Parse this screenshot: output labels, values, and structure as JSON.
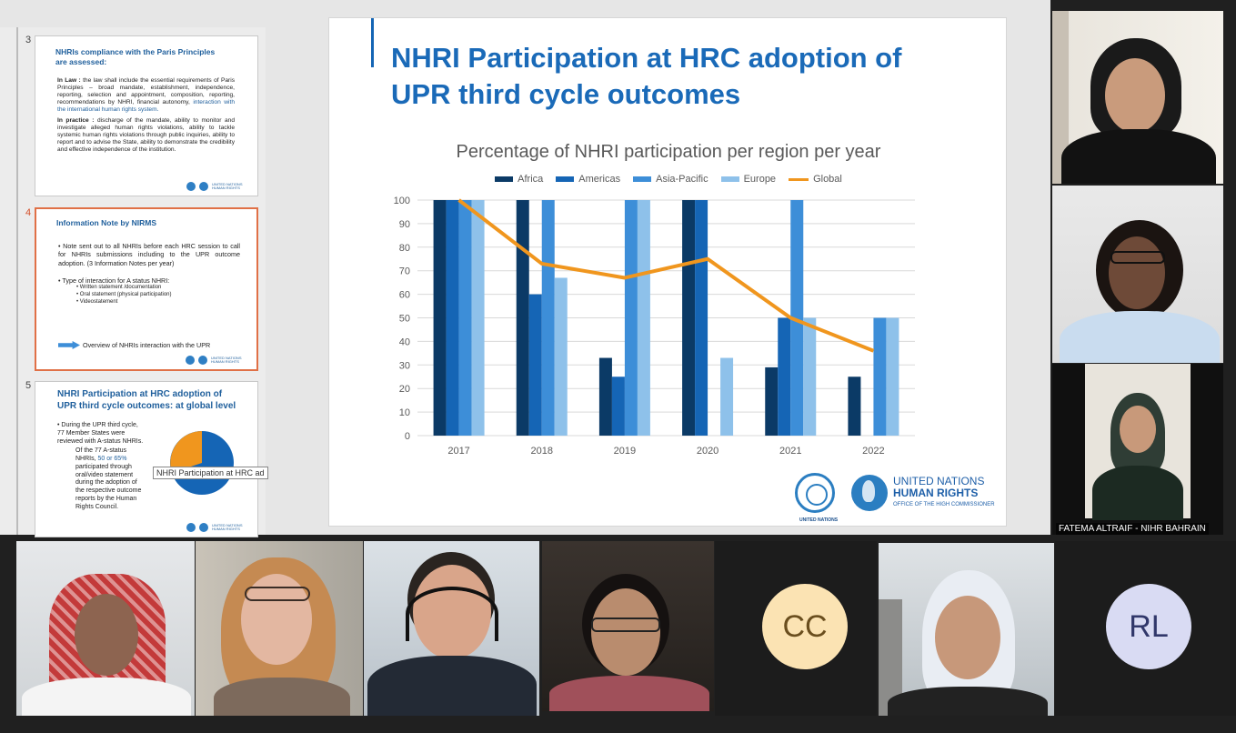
{
  "thumbnails": [
    {
      "number": "3",
      "title": "NHRIs compliance with the Paris Principles are assessed:",
      "law_label": "In Law :",
      "law_text": "the law shall include the essential requirements of Paris Principles – broad mandate, establishment, independence, reporting, selection and appointment, composition, reporting, recommendations by NHRI, financial autonomy,",
      "law_blue": "interaction with the international human rights system.",
      "practice_label": "In practice :",
      "practice_text": "discharge of the mandate, ability to monitor and investigate alleged human rights violations, ability to tackle systemic human rights violations through public inquiries, ability to report and to advise the State, ability to demonstrate the credibility and effective independence of the institution."
    },
    {
      "number": "4",
      "title": "Information Note by NIRMS",
      "bullet1": "Note sent out to all NHRIs before each HRC session to call for NHRIs submissions including to the UPR outcome adoption. (3 Information Notes per year)",
      "bullet2": "Type of interaction for A status NHRI:",
      "sub": [
        "Written statement /documentation",
        "Oral statement (physical participation)",
        "Videostatement"
      ],
      "arrow_text": "Overview of NHRIs interaction with the UPR"
    },
    {
      "number": "5",
      "title": "NHRI Participation at HRC adoption of UPR third cycle outcomes: at global level",
      "bullet": "During the UPR third cycle, 77 Member States were reviewed with A-status NHRIs.",
      "para_pre": "Of the 77 A-status NHRIs,",
      "para_blue": "50 or 65%",
      "para_post": "participated through oral/video statement during the adoption of the respective outcome reports by the Human Rights Council."
    }
  ],
  "tooltip": "NHRI Participation at HRC ad",
  "slide": {
    "title_line1": "NHRI Participation at HRC adoption of",
    "title_line2": "UPR third cycle outcomes",
    "un_label": "UNITED NATIONS",
    "hr_line1": "UNITED NATIONS",
    "hr_line2": "HUMAN RIGHTS",
    "hr_line3": "OFFICE OF THE HIGH COMMISSIONER"
  },
  "chart_data": {
    "type": "bar",
    "title": "Percentage of NHRI participation per region per year",
    "categories": [
      "2017",
      "2018",
      "2019",
      "2020",
      "2021",
      "2022"
    ],
    "ylim": [
      0,
      100
    ],
    "yticks": [
      0,
      10,
      20,
      30,
      40,
      50,
      60,
      70,
      80,
      90,
      100
    ],
    "series": [
      {
        "name": "Africa",
        "color": "#0b3a66",
        "values": [
          100,
          100,
          33,
          100,
          29,
          25
        ]
      },
      {
        "name": "Americas",
        "color": "#1565b5",
        "values": [
          100,
          60,
          25,
          100,
          50,
          0
        ]
      },
      {
        "name": "Asia-Pacific",
        "color": "#3d8ed8",
        "values": [
          100,
          100,
          100,
          0,
          100,
          50
        ]
      },
      {
        "name": "Europe",
        "color": "#8ec1ea",
        "values": [
          100,
          67,
          100,
          33,
          50,
          50
        ]
      }
    ],
    "line_series": {
      "name": "Global",
      "color": "#f0961e",
      "values": [
        100,
        73,
        67,
        75,
        50,
        36
      ]
    },
    "legend_position": "top"
  },
  "participants": {
    "side": [
      {
        "name": ""
      },
      {
        "name": ""
      },
      {
        "name": "FATEMA ALTRAIF - NIHR BAHRAIN"
      }
    ],
    "bottom": [
      {
        "name": "",
        "initials": ""
      },
      {
        "name": "",
        "initials": ""
      },
      {
        "name": "",
        "initials": ""
      },
      {
        "name": "",
        "initials": ""
      },
      {
        "name": "",
        "initials": "CC"
      },
      {
        "name": "",
        "initials": ""
      },
      {
        "name": "",
        "initials": "RL"
      }
    ]
  }
}
